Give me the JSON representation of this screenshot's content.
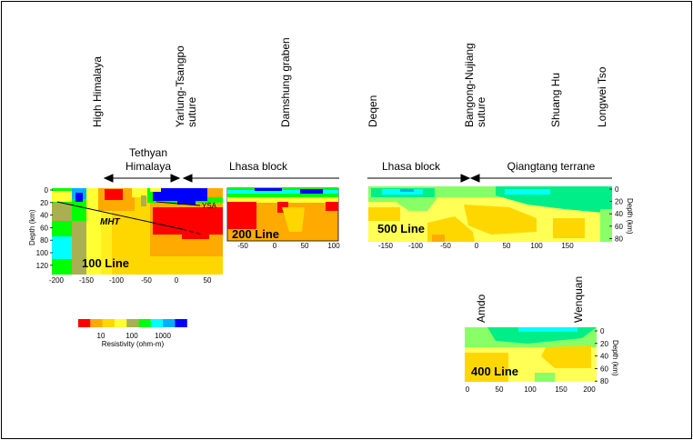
{
  "places": {
    "high_himalaya": "High Himalaya",
    "yarlung_1": "Yarlung-Tsangpo",
    "yarlung_2": "suture",
    "damshung": "Damshung graben",
    "deqen": "Deqen",
    "bangong_1": "Bangong-Nujiang",
    "bangong_2": "suture",
    "shuang_hu": "Shuang Hu",
    "longwei_tso": "Longwei Tso",
    "amdo": "Amdo",
    "wenquan": "Wenquan"
  },
  "blocks": {
    "tethyan_1": "Tethyan",
    "tethyan_2": "Himalaya",
    "lhasa_west": "Lhasa block",
    "lhasa_east": "Lhasa block",
    "qiangtang": "Qiangtang  terrane"
  },
  "panels": {
    "line100": {
      "title": "100 Line",
      "depth_label": "Depth (km)",
      "depth_ticks": [
        "0",
        "20",
        "40",
        "60",
        "80",
        "100",
        "120"
      ],
      "x_ticks": [
        "-200",
        "-150",
        "-100",
        "-50",
        "0",
        "50"
      ],
      "annotations": {
        "mht": "MHT",
        "ysa": "YSA"
      }
    },
    "line200": {
      "title": "200 Line",
      "x_ticks": [
        "-50",
        "0",
        "50",
        "100"
      ]
    },
    "line500": {
      "title": "500 Line",
      "depth_label": "Depth (km)",
      "depth_ticks": [
        "0",
        "20",
        "40",
        "60",
        "80"
      ],
      "x_ticks": [
        "-150",
        "-100",
        "-50",
        "0",
        "50",
        "100",
        "150"
      ]
    },
    "line400": {
      "title": "400 Line",
      "depth_label": "Depth (km)",
      "depth_ticks": [
        "0",
        "20",
        "40",
        "60",
        "80"
      ],
      "x_ticks": [
        "0",
        "50",
        "100",
        "150",
        "200"
      ]
    }
  },
  "colorbar": {
    "label": "Resistivity (ohm-m)",
    "ticks": [
      "10",
      "100",
      "1000"
    ],
    "colors": [
      "#ff0000",
      "#ffaa00",
      "#ffd700",
      "#ffff33",
      "#a8b050",
      "#00ff00",
      "#00ffff",
      "#00b0ff",
      "#0000ff"
    ]
  }
}
